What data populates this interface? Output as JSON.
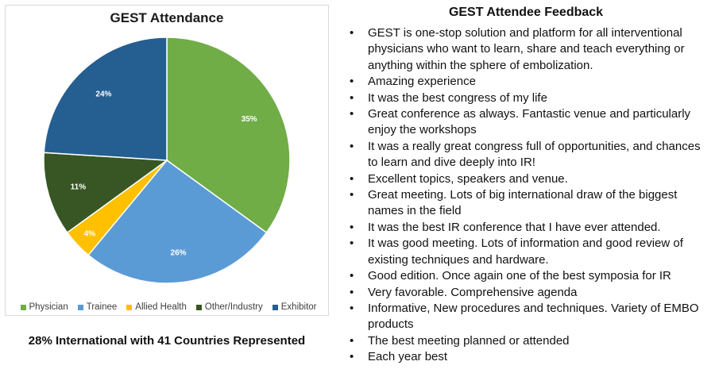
{
  "chart_data": {
    "type": "pie",
    "title": "GEST Attendance",
    "categories": [
      "Physician",
      "Trainee",
      "Allied Health",
      "Other/Industry",
      "Exhibitor"
    ],
    "values": [
      35,
      26,
      4,
      11,
      24
    ],
    "labels": [
      "35%",
      "26%",
      "4%",
      "11%",
      "24%"
    ],
    "colors": [
      "#70ad47",
      "#5b9bd5",
      "#ffc000",
      "#375623",
      "#255e91"
    ],
    "legend_position": "bottom"
  },
  "caption": "28% International with 41 Countries Represented",
  "feedback": {
    "title": "GEST Attendee Feedback",
    "items": [
      "GEST is one-stop solution and platform for all interventional physicians who want to learn, share and teach everything or anything within the sphere of embolization.",
      "Amazing experience",
      "It was the best congress of my life",
      "Great conference as always. Fantastic venue and particularly enjoy the workshops",
      "It was a really great congress full of opportunities, and chances to learn and dive deeply into IR!",
      "Excellent topics, speakers and venue.",
      "Great meeting. Lots of big international draw of the biggest names in the field",
      "It was the best IR conference that I have ever attended.",
      "It was good meeting. Lots of information and good review of existing techniques and hardware.",
      "Good edition. Once again one of the best symposia for IR",
      "Very favorable. Comprehensive agenda",
      "Informative, New procedures and techniques. Variety of EMBO products",
      "The best meeting planned or attended",
      "Each year best"
    ]
  }
}
